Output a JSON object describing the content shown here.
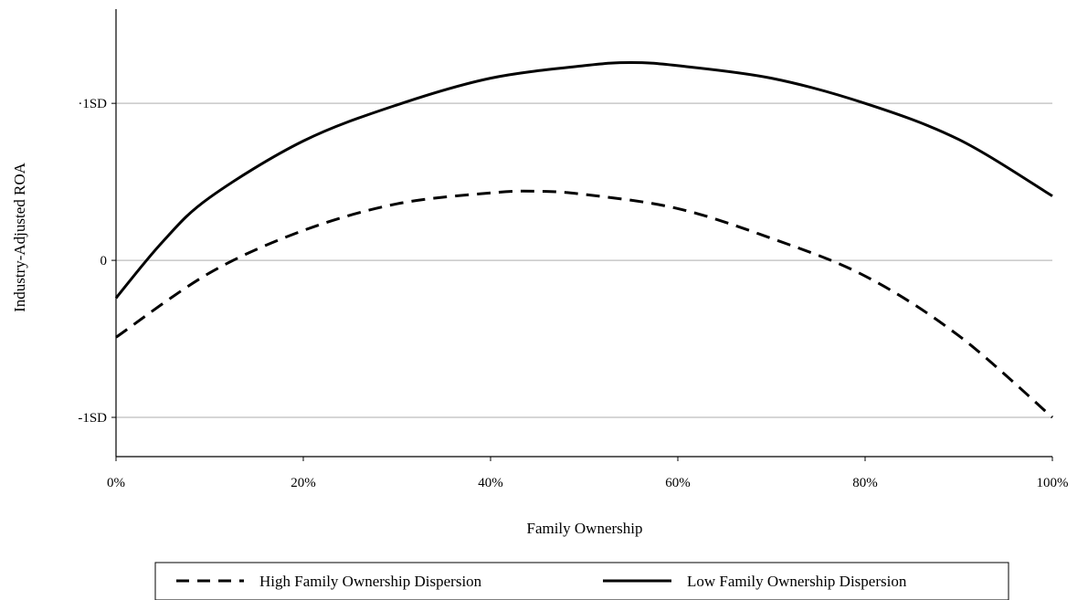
{
  "chart_data": {
    "type": "line",
    "title": "",
    "xlabel": "Family Ownership",
    "ylabel": "Industry-Adjusted ROA",
    "xlim": [
      0,
      100
    ],
    "ylim": [
      -1.25,
      1.6
    ],
    "x_ticks": [
      {
        "value": 0,
        "label": "0%"
      },
      {
        "value": 20,
        "label": "20%"
      },
      {
        "value": 40,
        "label": "40%"
      },
      {
        "value": 60,
        "label": "60%"
      },
      {
        "value": 80,
        "label": "80%"
      },
      {
        "value": 100,
        "label": "100%"
      }
    ],
    "y_ticks": [
      {
        "value": 1,
        "label": "·1SD"
      },
      {
        "value": 0,
        "label": "0"
      },
      {
        "value": -1,
        "label": "-1SD"
      }
    ],
    "grid": "horizontal",
    "legend_position": "bottom",
    "series": [
      {
        "name": "High Family Ownership Dispersion",
        "style": "dashed",
        "color": "#000000",
        "x": [
          0,
          10,
          20,
          30,
          40,
          45,
          50,
          60,
          70,
          80,
          90,
          100
        ],
        "y": [
          -0.49,
          -0.08,
          0.19,
          0.36,
          0.43,
          0.44,
          0.42,
          0.33,
          0.14,
          -0.1,
          -0.48,
          -1.0
        ]
      },
      {
        "name": "Low Family Ownership Dispersion",
        "style": "solid",
        "color": "#000000",
        "x": [
          0,
          5,
          10,
          20,
          30,
          40,
          50,
          55,
          60,
          70,
          80,
          90,
          100
        ],
        "y": [
          -0.24,
          0.12,
          0.4,
          0.76,
          0.99,
          1.16,
          1.24,
          1.26,
          1.24,
          1.16,
          1.0,
          0.77,
          0.41
        ]
      }
    ]
  }
}
